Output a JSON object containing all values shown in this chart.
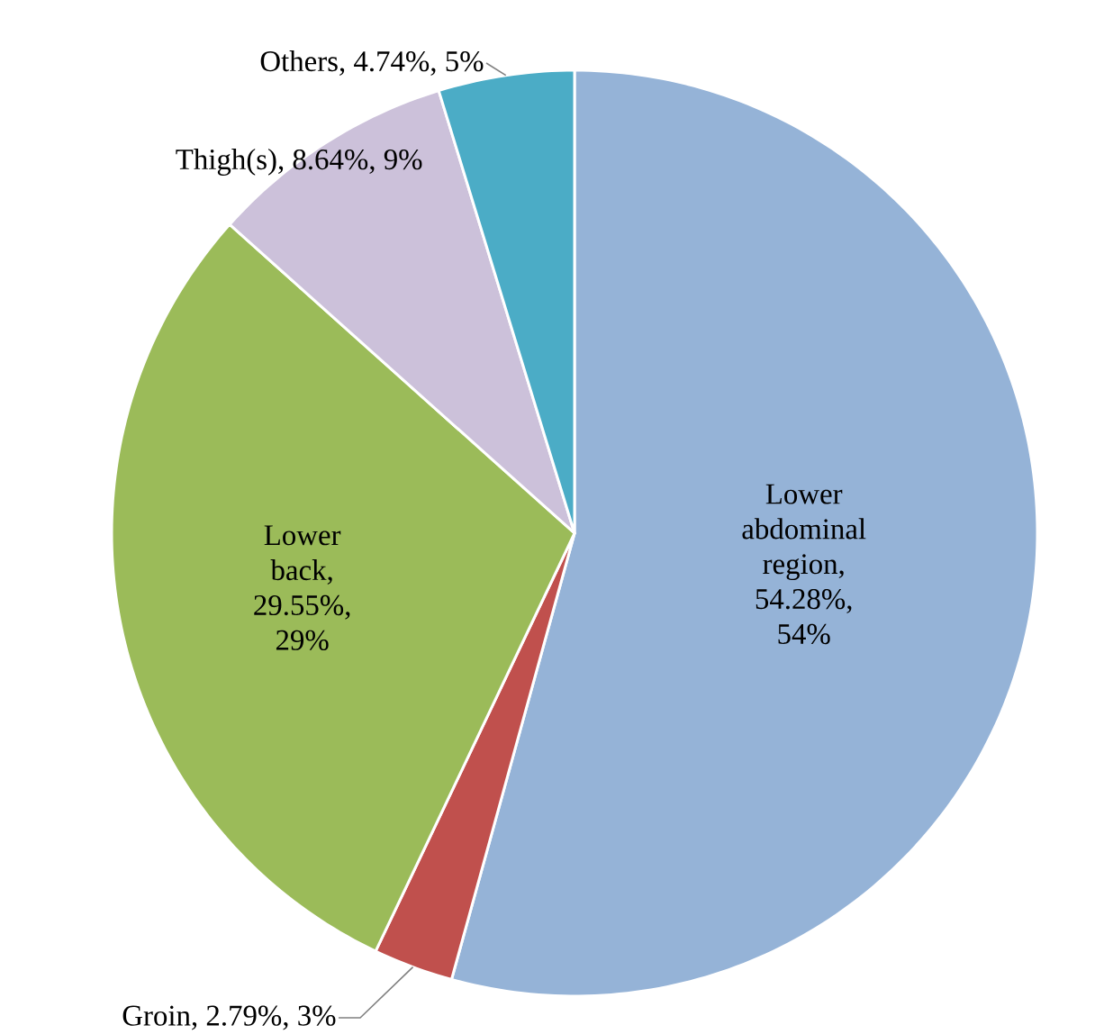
{
  "chart_data": {
    "type": "pie",
    "categories": [
      "Lower abdominal region",
      "Groin",
      "Lower back",
      "Thigh(s)",
      "Others"
    ],
    "values": [
      54.28,
      2.79,
      29.55,
      8.64,
      4.74
    ],
    "value_labels": [
      ", 54.28%, 54%",
      ", 2.79%, 3%",
      ", 29.55%, 29%",
      ", 8.64%, 9%",
      ", 4.74%, 5%"
    ],
    "colors": [
      "#95b3d7",
      "#c0504d",
      "#9bbb59",
      "#ccc1da",
      "#4bacc6"
    ]
  }
}
